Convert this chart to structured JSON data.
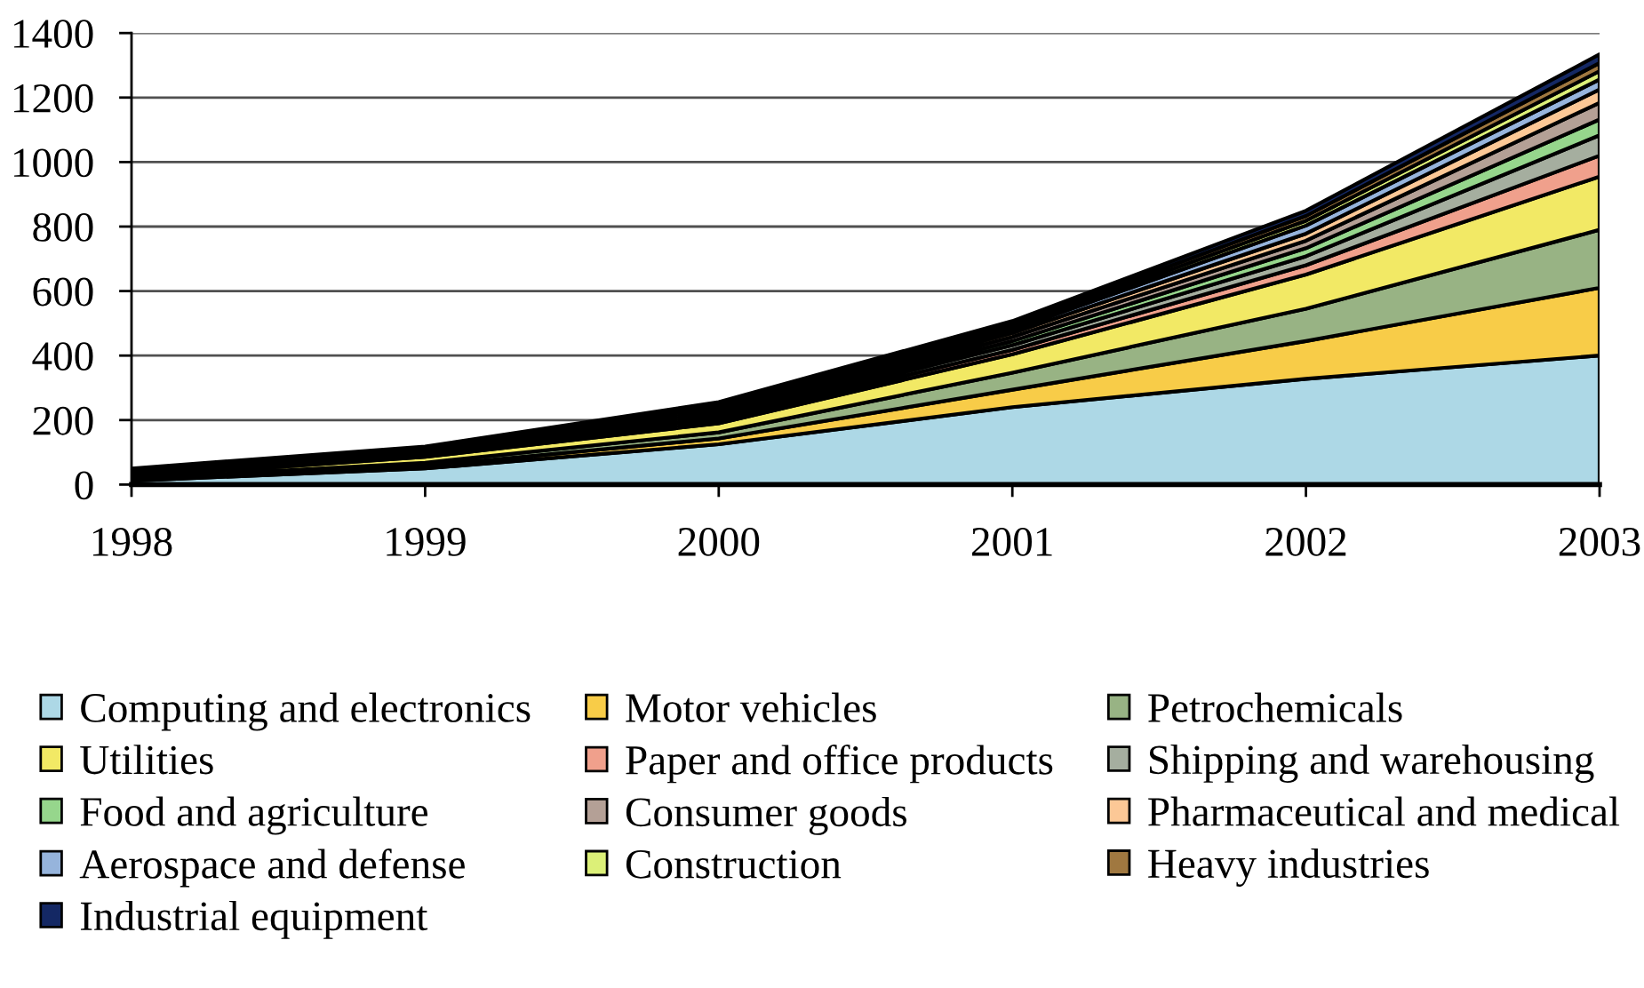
{
  "chart_data": {
    "type": "area",
    "stacked": true,
    "categories": [
      "1998",
      "1999",
      "2000",
      "2001",
      "2002",
      "2003"
    ],
    "ylim": [
      0,
      1400
    ],
    "yticks": [
      0,
      200,
      400,
      600,
      800,
      1000,
      1200,
      1400
    ],
    "grid": "y",
    "legend": "bottom",
    "series": [
      {
        "name": "Computing and electronics",
        "color": "#add8e6",
        "values": [
          12,
          50,
          125,
          240,
          328,
          400
        ]
      },
      {
        "name": "Motor vehicles",
        "color": "#f8cc48",
        "values": [
          3,
          8,
          18,
          54,
          117,
          210
        ]
      },
      {
        "name": "Petrochemicals",
        "color": "#98b384",
        "values": [
          3,
          10,
          19,
          53,
          100,
          180
        ]
      },
      {
        "name": "Utilities",
        "color": "#f2e965",
        "values": [
          5,
          18,
          28,
          57,
          106,
          165
        ]
      },
      {
        "name": "Paper and office products",
        "color": "#f0a08c",
        "values": [
          3,
          4,
          8,
          14,
          29,
          65
        ]
      },
      {
        "name": "Shipping and warehousing",
        "color": "#a5ae9f",
        "values": [
          3,
          4,
          8,
          14,
          28,
          63
        ]
      },
      {
        "name": "Food and agriculture",
        "color": "#96d68c",
        "values": [
          3,
          4,
          7,
          13,
          25,
          49
        ]
      },
      {
        "name": "Consumer goods",
        "color": "#b4a096",
        "values": [
          3,
          4,
          7,
          13,
          23,
          52
        ]
      },
      {
        "name": "Pharmaceutical and medical",
        "color": "#fcc896",
        "values": [
          3,
          3,
          7,
          12,
          22,
          41
        ]
      },
      {
        "name": "Aerospace and defense",
        "color": "#96b4dc",
        "values": [
          3,
          4,
          8,
          10,
          25,
          31
        ]
      },
      {
        "name": "Construction",
        "color": "#dcf078",
        "values": [
          3,
          3,
          7,
          9,
          15,
          26
        ]
      },
      {
        "name": "Heavy industries",
        "color": "#a07840",
        "values": [
          3,
          3,
          7,
          9,
          15,
          25
        ]
      },
      {
        "name": "Industrial equipment",
        "color": "#142864",
        "values": [
          3,
          3,
          7,
          9,
          16,
          27
        ]
      }
    ]
  }
}
